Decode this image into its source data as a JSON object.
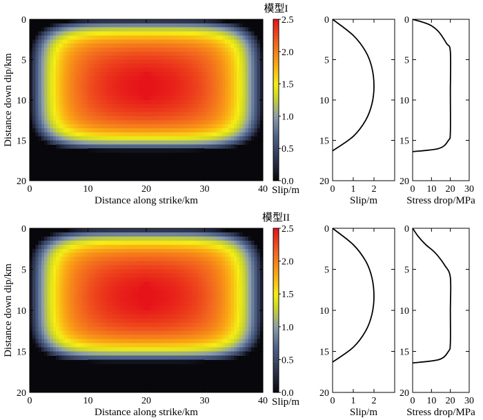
{
  "chart_data": [
    {
      "type": "heatmap",
      "title": "模型I",
      "xlabel": "Distance along strike/km",
      "ylabel": "Distance down dip/km",
      "xlim": [
        0,
        40
      ],
      "ylim": [
        0,
        20
      ],
      "x_ticks": [
        "0",
        "10",
        "20",
        "30",
        "40"
      ],
      "y_ticks": [
        "0",
        "5",
        "10",
        "15",
        "20"
      ],
      "field": {
        "x_extent": [
          0,
          40
        ],
        "z_extent": [
          0,
          16.3
        ],
        "peak_slip": 2.5,
        "peak_at": [
          20,
          8.3
        ]
      },
      "colorbar": {
        "label": "Slip/m",
        "range": [
          0.0,
          2.5
        ],
        "ticks": [
          "0.0",
          "0.5",
          "1.0",
          "1.5",
          "2.0",
          "2.5"
        ]
      }
    },
    {
      "type": "line",
      "xlabel": "Slip/m",
      "xlim": [
        0,
        3
      ],
      "ylim": [
        0,
        20
      ],
      "x_ticks": [
        "0",
        "1",
        "2"
      ],
      "y_ticks": [
        "0",
        "5",
        "10",
        "15",
        "20"
      ],
      "series": [
        {
          "x": [
            0,
            1.0,
            1.6,
            1.9,
            2.0,
            1.9,
            1.6,
            1.0,
            0
          ],
          "y": [
            0,
            2.0,
            4.0,
            6.0,
            8.3,
            10.5,
            12.5,
            14.5,
            16.3
          ]
        }
      ]
    },
    {
      "type": "line",
      "xlabel": "Stress drop/MPa",
      "xlim": [
        0,
        30
      ],
      "ylim": [
        0,
        20
      ],
      "x_ticks": [
        "0",
        "10",
        "20",
        "30"
      ],
      "y_ticks": [
        "0",
        "5",
        "10",
        "15",
        "20"
      ],
      "series": [
        {
          "x": [
            0,
            6,
            10,
            14,
            18,
            20,
            20,
            20,
            19,
            14,
            0
          ],
          "y": [
            0,
            0.4,
            0.8,
            1.6,
            3.0,
            4.0,
            9.0,
            14.0,
            15.0,
            16.0,
            16.4
          ]
        }
      ]
    },
    {
      "type": "heatmap",
      "title": "模型II",
      "xlabel": "Distance along strike/km",
      "ylabel": "Distance down dip/km",
      "xlim": [
        0,
        40
      ],
      "ylim": [
        0,
        20
      ],
      "x_ticks": [
        "0",
        "10",
        "20",
        "30",
        "40"
      ],
      "y_ticks": [
        "0",
        "5",
        "10",
        "15",
        "20"
      ],
      "field": {
        "x_extent": [
          0,
          40
        ],
        "z_extent": [
          0,
          16.3
        ],
        "peak_slip": 2.5,
        "peak_at": [
          20,
          8.3
        ]
      },
      "colorbar": {
        "label": "Slip/m",
        "range": [
          0.0,
          2.5
        ],
        "ticks": [
          "0.0",
          "0.5",
          "1.0",
          "1.5",
          "2.0",
          "2.5"
        ]
      }
    },
    {
      "type": "line",
      "xlabel": "Slip/m",
      "xlim": [
        0,
        3
      ],
      "ylim": [
        0,
        20
      ],
      "x_ticks": [
        "0",
        "1",
        "2"
      ],
      "y_ticks": [
        "0",
        "5",
        "10",
        "15",
        "20"
      ],
      "series": [
        {
          "x": [
            0,
            1.0,
            1.6,
            1.9,
            2.0,
            1.9,
            1.6,
            1.0,
            0
          ],
          "y": [
            0,
            2.0,
            4.0,
            6.0,
            8.3,
            10.5,
            12.5,
            14.5,
            16.3
          ]
        }
      ]
    },
    {
      "type": "line",
      "xlabel": "Stress drop/MPa",
      "xlim": [
        0,
        30
      ],
      "ylim": [
        0,
        20
      ],
      "x_ticks": [
        "0",
        "10",
        "20",
        "30"
      ],
      "y_ticks": [
        "0",
        "5",
        "10",
        "15",
        "20"
      ],
      "series": [
        {
          "x": [
            0,
            3,
            7,
            12,
            17,
            20,
            20,
            20,
            19,
            14,
            0
          ],
          "y": [
            0,
            1.0,
            2.0,
            3.0,
            4.5,
            6.0,
            10.0,
            14.0,
            15.0,
            16.0,
            16.4
          ]
        }
      ]
    }
  ]
}
